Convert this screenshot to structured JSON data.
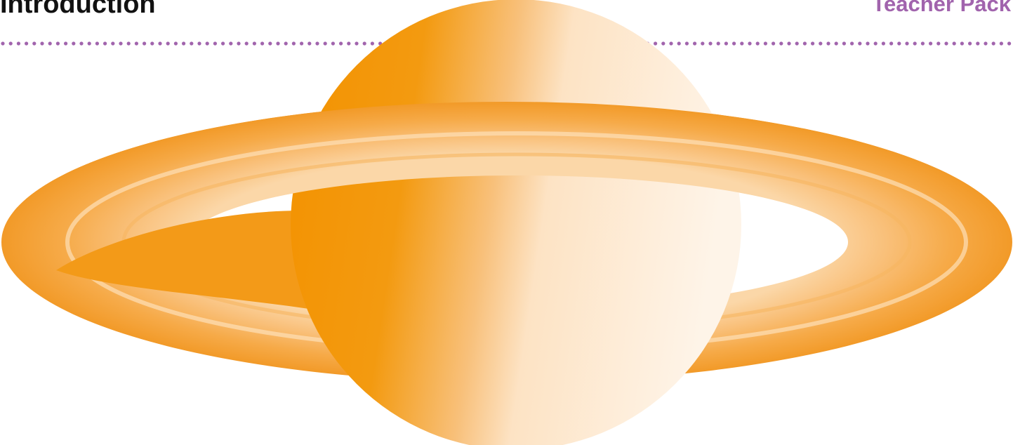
{
  "header": {
    "title": "Introduction",
    "pack": "Teacher Pack"
  }
}
